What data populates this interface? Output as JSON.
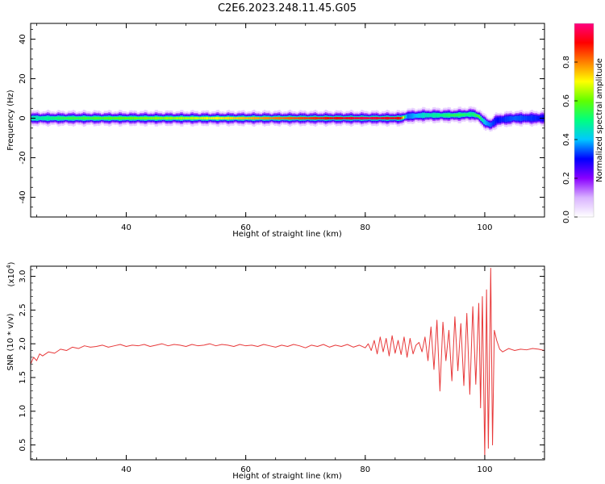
{
  "title": "C2E6.2023.248.11.45.G05",
  "chart_data": [
    {
      "type": "heatmap",
      "xlabel": "Height of straight line (km)",
      "ylabel": "Frequency (Hz)",
      "xlim": [
        24,
        110
      ],
      "ylim": [
        -50,
        48
      ],
      "xticks": [
        40,
        60,
        80,
        100
      ],
      "yticks": [
        -40,
        -20,
        0,
        20,
        40
      ],
      "colorbar": {
        "label": "Normalized spectral amplitude",
        "range": [
          0,
          1
        ],
        "ticks": [
          0.0,
          0.2,
          0.4,
          0.6,
          0.8
        ],
        "tick_labels": [
          "0.0",
          "0.2",
          "0.4",
          "0.6",
          "0.8"
        ],
        "colormap": [
          "#ffffff",
          "#d9b3ff",
          "#8a00ff",
          "#0000ff",
          "#00c8ff",
          "#00ff80",
          "#60ff00",
          "#ffff00",
          "#ff8000",
          "#ff0000",
          "#ff0080"
        ]
      },
      "band_profile": {
        "height_km": [
          24,
          30,
          40,
          50,
          60,
          65,
          70,
          80,
          86,
          87,
          90,
          95,
          98,
          99,
          100,
          101,
          102,
          105,
          110
        ],
        "center_hz": [
          0,
          0,
          0,
          0,
          0,
          0,
          0,
          0,
          0,
          1,
          1.5,
          1.5,
          2,
          1,
          -2,
          -3.5,
          -1,
          0,
          0
        ],
        "peak_amplitude": [
          0.45,
          0.55,
          0.6,
          0.65,
          0.75,
          0.8,
          0.85,
          0.95,
          0.9,
          0.35,
          0.45,
          0.55,
          0.5,
          0.6,
          0.4,
          0.35,
          0.3,
          0.35,
          0.3
        ]
      }
    },
    {
      "type": "line",
      "xlabel": "Height of straight line (km)",
      "ylabel": "SNR (10 * v/v)",
      "yscale_label": "(x10",
      "yscale_exponent": "4",
      "yscale_close": ")",
      "xlim": [
        24,
        110
      ],
      "ylim": [
        0.28,
        3.15
      ],
      "xticks": [
        40,
        60,
        80,
        100
      ],
      "yticks": [
        0.5,
        1.0,
        1.5,
        2.0,
        2.5,
        3.0
      ],
      "ytick_labels": [
        "0.5",
        "1.0",
        "1.5",
        "2.0",
        "2.5",
        "3.0"
      ],
      "color": "#e8393a",
      "series": [
        {
          "x": [
            24.0,
            24.5,
            25.0,
            25.5,
            26.0,
            27.0,
            28.0,
            29.0,
            30.0,
            31.0,
            32.0,
            33.0,
            34.0,
            35.0,
            36.0,
            37.0,
            38.0,
            39.0,
            40.0,
            41.0,
            42.0,
            43.0,
            44.0,
            45.0,
            46.0,
            47.0,
            48.0,
            49.0,
            50.0,
            51.0,
            52.0,
            53.0,
            54.0,
            55.0,
            56.0,
            57.0,
            58.0,
            59.0,
            60.0,
            61.0,
            62.0,
            63.0,
            64.0,
            65.0,
            66.0,
            67.0,
            68.0,
            69.0,
            70.0,
            71.0,
            72.0,
            73.0,
            74.0,
            75.0,
            76.0,
            77.0,
            78.0,
            79.0,
            80.0,
            80.5,
            81.0,
            81.5,
            82.0,
            82.5,
            83.0,
            83.5,
            84.0,
            84.5,
            85.0,
            85.5,
            86.0,
            86.5,
            87.0,
            87.5,
            88.0,
            88.5,
            89.0,
            89.5,
            90.0,
            90.5,
            91.0,
            91.5,
            92.0,
            92.5,
            93.0,
            93.5,
            94.0,
            94.5,
            95.0,
            95.5,
            96.0,
            96.5,
            97.0,
            97.5,
            98.0,
            98.5,
            99.0,
            99.3,
            99.6,
            100.0,
            100.3,
            100.6,
            101.0,
            101.3,
            101.6,
            102.0,
            102.5,
            103.0,
            104.0,
            105.0,
            106.0,
            107.0,
            108.0,
            109.0,
            110.0
          ],
          "y": [
            1.7,
            1.8,
            1.75,
            1.85,
            1.82,
            1.88,
            1.86,
            1.92,
            1.9,
            1.95,
            1.93,
            1.97,
            1.95,
            1.96,
            1.98,
            1.95,
            1.97,
            1.99,
            1.96,
            1.98,
            1.97,
            1.99,
            1.96,
            1.98,
            2.0,
            1.97,
            1.99,
            1.98,
            1.96,
            1.99,
            1.97,
            1.98,
            2.0,
            1.97,
            1.99,
            1.98,
            1.96,
            1.99,
            1.97,
            1.98,
            1.96,
            1.99,
            1.97,
            1.95,
            1.98,
            1.96,
            1.99,
            1.97,
            1.94,
            1.98,
            1.96,
            1.99,
            1.95,
            1.98,
            1.96,
            1.99,
            1.95,
            1.98,
            1.94,
            2.0,
            1.9,
            2.05,
            1.85,
            2.1,
            1.88,
            2.08,
            1.82,
            2.12,
            1.86,
            2.05,
            1.84,
            2.1,
            1.8,
            2.08,
            1.85,
            1.98,
            2.02,
            1.88,
            2.1,
            1.75,
            2.25,
            1.62,
            2.35,
            1.3,
            2.32,
            1.75,
            2.2,
            1.45,
            2.4,
            1.6,
            2.3,
            1.38,
            2.45,
            1.25,
            2.55,
            1.4,
            2.6,
            1.05,
            2.7,
            0.32,
            2.8,
            0.45,
            3.12,
            0.5,
            2.2,
            2.05,
            1.92,
            1.88,
            1.93,
            1.9,
            1.92,
            1.91,
            1.93,
            1.92,
            1.9
          ]
        }
      ]
    }
  ]
}
